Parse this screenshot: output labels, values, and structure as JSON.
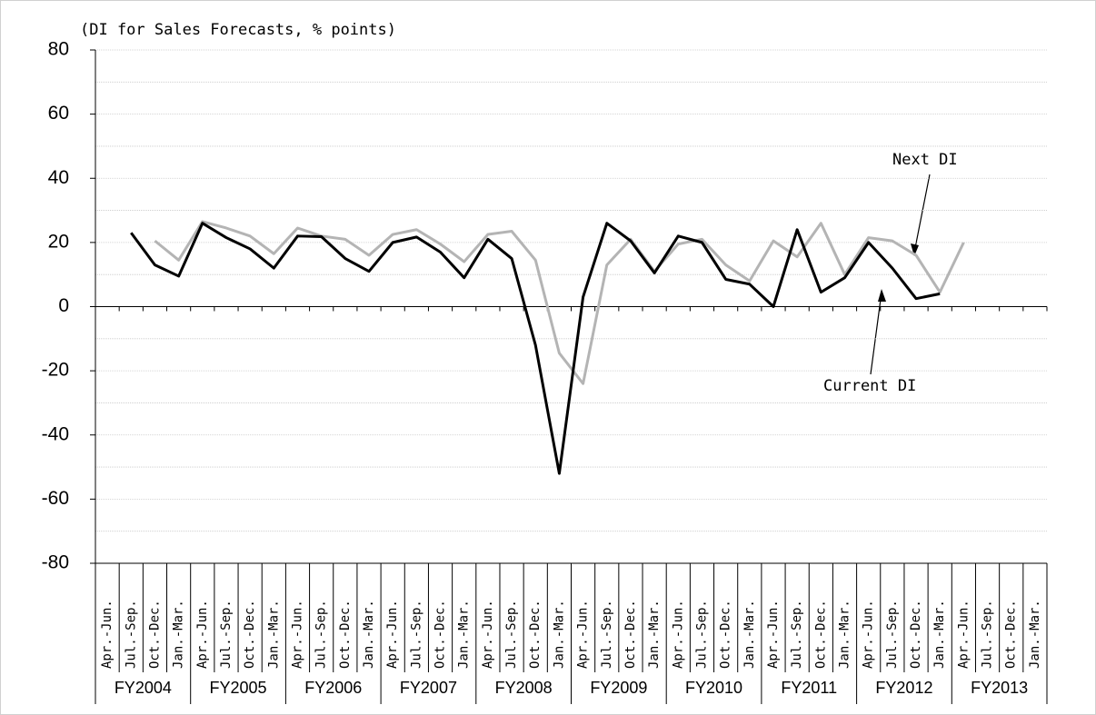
{
  "chart_data": {
    "type": "line",
    "y_label": "(DI for Sales Forecasts, % points)",
    "categories": [
      "Apr.-Jun.",
      "Jul.-Sep.",
      "Oct.-Dec.",
      "Jan.-Mar.",
      "Apr.-Jun.",
      "Jul.-Sep.",
      "Oct.-Dec.",
      "Jan.-Mar.",
      "Apr.-Jun.",
      "Jul.-Sep.",
      "Oct.-Dec.",
      "Jan.-Mar.",
      "Apr.-Jun.",
      "Jul.-Sep.",
      "Oct.-Dec.",
      "Jan.-Mar.",
      "Apr.-Jun.",
      "Jul.-Sep.",
      "Oct.-Dec.",
      "Jan.-Mar.",
      "Apr.-Jun.",
      "Jul.-Sep.",
      "Oct.-Dec.",
      "Jan.-Mar.",
      "Apr.-Jun.",
      "Jul.-Sep.",
      "Oct.-Dec.",
      "Jan.-Mar.",
      "Apr.-Jun.",
      "Jul.-Sep.",
      "Oct.-Dec.",
      "Jan.-Mar.",
      "Apr.-Jun.",
      "Jul.-Sep.",
      "Oct.-Dec.",
      "Jan.-Mar.",
      "Apr.-Jun.",
      "Jul.-Sep.",
      "Oct.-Dec.",
      "Jan.-Mar."
    ],
    "groups": [
      "FY2004",
      "FY2005",
      "FY2006",
      "FY2007",
      "FY2008",
      "FY2009",
      "FY2010",
      "FY2011",
      "FY2012",
      "FY2013"
    ],
    "series": [
      {
        "name": "Current DI",
        "color": "#000000",
        "values": [
          null,
          23,
          13,
          9.5,
          26,
          21.5,
          18,
          12,
          22,
          21.8,
          15,
          11,
          20,
          21.7,
          17,
          9,
          21,
          15,
          -12,
          -52,
          3,
          26,
          20.5,
          10.5,
          22,
          20,
          8.5,
          7,
          0,
          24,
          4.5,
          9,
          20,
          12,
          2.5,
          4,
          null,
          null,
          null,
          null
        ]
      },
      {
        "name": "Next DI",
        "color": "#b4b4b4",
        "values": [
          null,
          null,
          20.5,
          14.5,
          26.5,
          24.5,
          22,
          16.5,
          24.5,
          22,
          21,
          16,
          22.5,
          24,
          19.5,
          14,
          22.5,
          23.5,
          14.5,
          -14.5,
          -24,
          13,
          21,
          11,
          19.5,
          21,
          13,
          8,
          20.5,
          15.5,
          26,
          10,
          21.5,
          20.5,
          16,
          4.5,
          20,
          null,
          null,
          null
        ]
      }
    ],
    "ylim": [
      -80,
      80
    ],
    "yticks": [
      -80,
      -60,
      -40,
      -20,
      0,
      20,
      40,
      60,
      80
    ],
    "minor_yticks": [
      -70,
      -50,
      -30,
      -10,
      10,
      30,
      50,
      70
    ],
    "grid": true
  }
}
